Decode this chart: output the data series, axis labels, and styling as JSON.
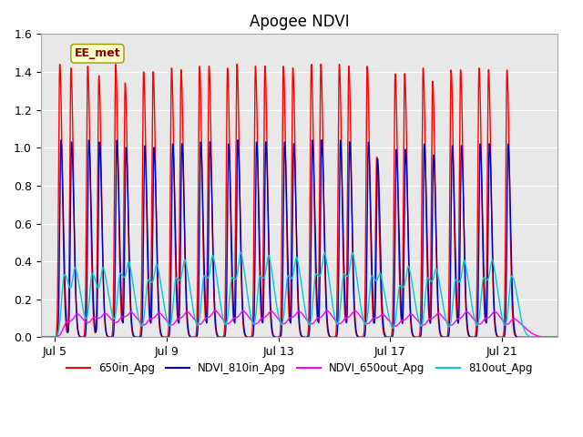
{
  "title": "Apogee NDVI",
  "ylim": [
    0.0,
    1.6
  ],
  "yticks": [
    0.0,
    0.2,
    0.4,
    0.6,
    0.8,
    1.0,
    1.2,
    1.4,
    1.6
  ],
  "xtick_labels": [
    "Jul 5",
    "Jul 9",
    "Jul 13",
    "Jul 17",
    "Jul 21"
  ],
  "xtick_positions": [
    5,
    9,
    13,
    17,
    21
  ],
  "xlim": [
    4.5,
    23.0
  ],
  "background_color": "#e8e8e8",
  "figure_color": "#ffffff",
  "annotation_text": "EE_met",
  "legend_labels": [
    "650in_Apg",
    "NDVI_810in_Apg",
    "NDVI_650out_Apg",
    "810out_Apg"
  ],
  "legend_colors": [
    "#ff0000",
    "#0000bb",
    "#ff00ff",
    "#00cccc"
  ],
  "red_pairs": [
    [
      5.18,
      1.44
    ],
    [
      5.58,
      1.42
    ],
    [
      6.18,
      1.43
    ],
    [
      6.58,
      1.38
    ],
    [
      7.18,
      1.44
    ],
    [
      7.52,
      1.34
    ],
    [
      8.18,
      1.4
    ],
    [
      8.52,
      1.4
    ],
    [
      9.18,
      1.42
    ],
    [
      9.52,
      1.41
    ],
    [
      10.18,
      1.43
    ],
    [
      10.52,
      1.43
    ],
    [
      11.18,
      1.42
    ],
    [
      11.52,
      1.44
    ],
    [
      12.18,
      1.43
    ],
    [
      12.52,
      1.43
    ],
    [
      13.18,
      1.43
    ],
    [
      13.52,
      1.42
    ],
    [
      14.18,
      1.44
    ],
    [
      14.52,
      1.44
    ],
    [
      15.18,
      1.44
    ],
    [
      15.52,
      1.43
    ],
    [
      16.18,
      1.43
    ],
    [
      16.52,
      0.95
    ],
    [
      17.18,
      1.39
    ],
    [
      17.52,
      1.39
    ],
    [
      18.18,
      1.42
    ],
    [
      18.52,
      1.35
    ],
    [
      19.18,
      1.41
    ],
    [
      19.52,
      1.41
    ],
    [
      20.18,
      1.42
    ],
    [
      20.52,
      1.41
    ],
    [
      21.18,
      1.41
    ]
  ],
  "blue_pairs": [
    [
      5.22,
      1.04
    ],
    [
      5.6,
      1.03
    ],
    [
      6.22,
      1.04
    ],
    [
      6.6,
      1.03
    ],
    [
      7.22,
      1.04
    ],
    [
      7.55,
      1.0
    ],
    [
      8.22,
      1.01
    ],
    [
      8.55,
      1.0
    ],
    [
      9.22,
      1.02
    ],
    [
      9.55,
      1.02
    ],
    [
      10.22,
      1.03
    ],
    [
      10.55,
      1.03
    ],
    [
      11.22,
      1.02
    ],
    [
      11.55,
      1.04
    ],
    [
      12.22,
      1.03
    ],
    [
      12.55,
      1.03
    ],
    [
      13.22,
      1.03
    ],
    [
      13.55,
      1.02
    ],
    [
      14.22,
      1.04
    ],
    [
      14.55,
      1.04
    ],
    [
      15.22,
      1.04
    ],
    [
      15.55,
      1.03
    ],
    [
      16.22,
      1.03
    ],
    [
      16.55,
      0.94
    ],
    [
      17.22,
      0.99
    ],
    [
      17.55,
      0.99
    ],
    [
      18.22,
      1.02
    ],
    [
      18.55,
      0.96
    ],
    [
      19.22,
      1.01
    ],
    [
      19.55,
      1.01
    ],
    [
      20.22,
      1.02
    ],
    [
      20.55,
      1.02
    ],
    [
      21.22,
      1.02
    ]
  ],
  "cyan_pairs": [
    [
      5.35,
      0.33
    ],
    [
      5.75,
      0.3
    ],
    [
      6.35,
      0.33
    ],
    [
      6.75,
      0.3
    ],
    [
      7.35,
      0.33
    ],
    [
      7.68,
      0.28
    ],
    [
      8.35,
      0.3
    ],
    [
      8.68,
      0.28
    ],
    [
      9.35,
      0.31
    ],
    [
      9.68,
      0.3
    ],
    [
      10.35,
      0.32
    ],
    [
      10.68,
      0.32
    ],
    [
      11.35,
      0.31
    ],
    [
      11.68,
      0.34
    ],
    [
      12.35,
      0.32
    ],
    [
      12.68,
      0.32
    ],
    [
      13.35,
      0.32
    ],
    [
      13.68,
      0.31
    ],
    [
      14.35,
      0.33
    ],
    [
      14.68,
      0.33
    ],
    [
      15.35,
      0.33
    ],
    [
      15.68,
      0.33
    ],
    [
      16.35,
      0.32
    ],
    [
      16.68,
      0.22
    ],
    [
      17.35,
      0.27
    ],
    [
      17.68,
      0.28
    ],
    [
      18.35,
      0.31
    ],
    [
      18.68,
      0.25
    ],
    [
      19.35,
      0.3
    ],
    [
      19.68,
      0.3
    ],
    [
      20.35,
      0.31
    ],
    [
      20.68,
      0.3
    ],
    [
      21.35,
      0.32
    ]
  ],
  "mag_pairs": [
    [
      5.45,
      0.08
    ],
    [
      5.85,
      0.075
    ],
    [
      6.45,
      0.08
    ],
    [
      6.85,
      0.075
    ],
    [
      7.45,
      0.08
    ],
    [
      7.78,
      0.07
    ],
    [
      8.45,
      0.077
    ],
    [
      8.78,
      0.07
    ],
    [
      9.45,
      0.078
    ],
    [
      9.78,
      0.076
    ],
    [
      10.45,
      0.08
    ],
    [
      10.78,
      0.08
    ],
    [
      11.45,
      0.078
    ],
    [
      11.78,
      0.08
    ],
    [
      12.45,
      0.079
    ],
    [
      12.78,
      0.079
    ],
    [
      13.45,
      0.08
    ],
    [
      13.78,
      0.078
    ],
    [
      14.45,
      0.08
    ],
    [
      14.78,
      0.08
    ],
    [
      15.45,
      0.08
    ],
    [
      15.78,
      0.08
    ],
    [
      16.45,
      0.079
    ],
    [
      16.78,
      0.06
    ],
    [
      17.45,
      0.07
    ],
    [
      17.78,
      0.07
    ],
    [
      18.45,
      0.078
    ],
    [
      18.78,
      0.068
    ],
    [
      19.45,
      0.077
    ],
    [
      19.78,
      0.077
    ],
    [
      20.45,
      0.078
    ],
    [
      20.78,
      0.077
    ],
    [
      21.45,
      0.079
    ]
  ]
}
